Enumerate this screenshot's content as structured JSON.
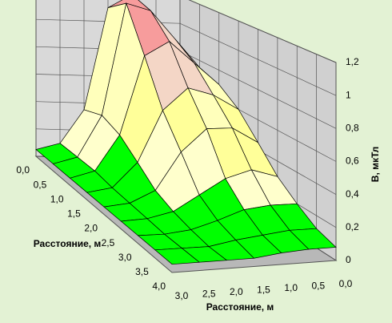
{
  "chart_data": {
    "type": "surface",
    "xlabel": "Расстояние, м",
    "ylabel": "Расстояние, м",
    "zlabel": "B, мкТл",
    "x": [
      "0,0",
      "0,5",
      "1,0",
      "1,5",
      "2,0",
      "2,5",
      "3,0",
      "3,5",
      "4,0"
    ],
    "y": [
      "3,0",
      "2,5",
      "2,0",
      "1,5",
      "1,0",
      "0,5",
      "0,0"
    ],
    "z": [
      [
        0.05,
        0.1,
        0.35,
        1.1,
        1.2,
        1.0,
        0.8
      ],
      [
        0.05,
        0.1,
        0.4,
        1.2,
        1.15,
        0.95,
        0.75
      ],
      [
        0.05,
        0.1,
        0.35,
        0.9,
        1.0,
        0.85,
        0.7
      ],
      [
        0.05,
        0.08,
        0.25,
        0.6,
        0.75,
        0.7,
        0.6
      ],
      [
        0.05,
        0.07,
        0.15,
        0.4,
        0.55,
        0.55,
        0.45
      ],
      [
        0.05,
        0.06,
        0.1,
        0.2,
        0.3,
        0.35,
        0.3
      ],
      [
        0.05,
        0.05,
        0.07,
        0.12,
        0.18,
        0.2,
        0.2
      ],
      [
        0.05,
        0.05,
        0.05,
        0.08,
        0.1,
        0.12,
        0.12
      ],
      [
        0.05,
        0.05,
        0.05,
        0.05,
        0.07,
        0.08,
        0.08
      ]
    ],
    "zlim": [
      0,
      1.2
    ],
    "zticks": [
      0,
      {
        "value": 0.2,
        "label": "0,2"
      },
      {
        "value": 0.4,
        "label": "0,4"
      },
      {
        "value": 0.6,
        "label": "0,6"
      },
      {
        "value": 0.8,
        "label": "0,8"
      },
      1,
      {
        "value": 1.2,
        "label": "1,2"
      }
    ],
    "band_colors": [
      "#00ff00",
      "#ffffcc",
      "#ffff99",
      "#ffffbb",
      "#f4d6c6",
      "#f79c9c"
    ],
    "grid": true
  }
}
